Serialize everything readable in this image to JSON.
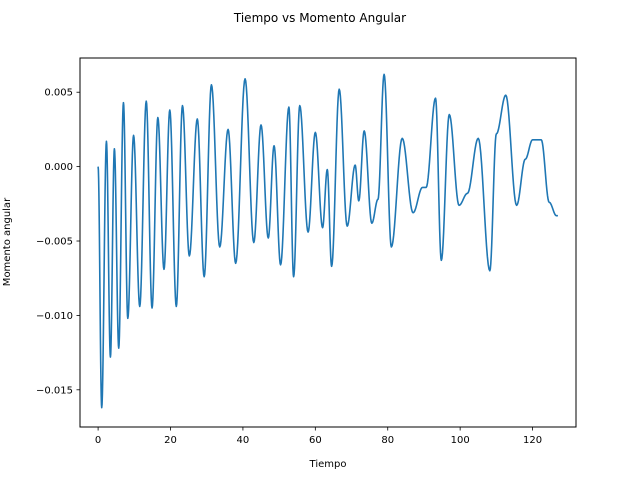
{
  "chart_data": {
    "type": "line",
    "title": "Tiempo vs Momento Angular",
    "xlabel": "Tiempo",
    "ylabel": "Momento angular",
    "xlim": [
      -5,
      132
    ],
    "ylim": [
      -0.0175,
      0.0073
    ],
    "xticks": [
      0,
      20,
      40,
      60,
      80,
      100,
      120
    ],
    "xtick_labels": [
      "0",
      "20",
      "40",
      "60",
      "80",
      "100",
      "120"
    ],
    "yticks": [
      -0.015,
      -0.01,
      -0.005,
      0.0,
      0.005
    ],
    "ytick_labels": [
      "−0.015",
      "−0.010",
      "−0.005",
      "0.000",
      "0.005"
    ],
    "grid": false,
    "series": [
      {
        "color": "#1f77b4",
        "extrema": [
          [
            0.0,
            0.0
          ],
          [
            1.0,
            -0.0162
          ],
          [
            2.3,
            0.0017
          ],
          [
            3.4,
            -0.0128
          ],
          [
            4.5,
            0.0012
          ],
          [
            5.7,
            -0.0122
          ],
          [
            7.0,
            0.0043
          ],
          [
            8.2,
            -0.0102
          ],
          [
            9.8,
            0.0021
          ],
          [
            11.5,
            -0.0094
          ],
          [
            13.3,
            0.0044
          ],
          [
            14.9,
            -0.0095
          ],
          [
            16.5,
            0.0033
          ],
          [
            18.2,
            -0.0069
          ],
          [
            19.8,
            0.0038
          ],
          [
            21.6,
            -0.0094
          ],
          [
            23.3,
            0.0041
          ],
          [
            25.2,
            -0.006
          ],
          [
            27.4,
            0.0032
          ],
          [
            29.3,
            -0.0074
          ],
          [
            31.3,
            0.0055
          ],
          [
            33.6,
            -0.0054
          ],
          [
            35.9,
            0.0025
          ],
          [
            38.0,
            -0.0065
          ],
          [
            40.6,
            0.0059
          ],
          [
            43.0,
            -0.0051
          ],
          [
            45.0,
            0.0028
          ],
          [
            47.0,
            -0.0048
          ],
          [
            48.6,
            0.0014
          ],
          [
            50.4,
            -0.0066
          ],
          [
            52.7,
            0.004
          ],
          [
            54.0,
            -0.0074
          ],
          [
            55.7,
            0.0041
          ],
          [
            58.0,
            -0.0044
          ],
          [
            60.0,
            0.0023
          ],
          [
            62.0,
            -0.0041
          ],
          [
            63.3,
            -0.0002
          ],
          [
            64.5,
            -0.0067
          ],
          [
            66.6,
            0.0052
          ],
          [
            68.8,
            -0.004
          ],
          [
            71.0,
            0.0001
          ],
          [
            72.0,
            -0.0023
          ],
          [
            73.5,
            0.0024
          ],
          [
            75.6,
            -0.0038
          ],
          [
            77.3,
            -0.0022
          ],
          [
            79.0,
            0.0062
          ],
          [
            81.0,
            -0.0054
          ],
          [
            84.0,
            0.0019
          ],
          [
            87.0,
            -0.0031
          ],
          [
            89.6,
            -0.0014
          ],
          [
            90.6,
            -0.0014
          ],
          [
            93.2,
            0.0046
          ],
          [
            94.8,
            -0.0063
          ],
          [
            97.0,
            0.0035
          ],
          [
            99.7,
            -0.0026
          ],
          [
            102.0,
            -0.0018
          ],
          [
            105.0,
            0.0019
          ],
          [
            108.2,
            -0.007
          ],
          [
            110.0,
            0.0022
          ],
          [
            112.6,
            0.0048
          ],
          [
            115.6,
            -0.0026
          ],
          [
            118.0,
            0.0005
          ],
          [
            120.0,
            0.0018
          ],
          [
            122.4,
            0.0018
          ],
          [
            124.6,
            -0.0024
          ],
          [
            126.6,
            -0.0033
          ],
          [
            127.0,
            -0.0033
          ]
        ]
      }
    ]
  }
}
